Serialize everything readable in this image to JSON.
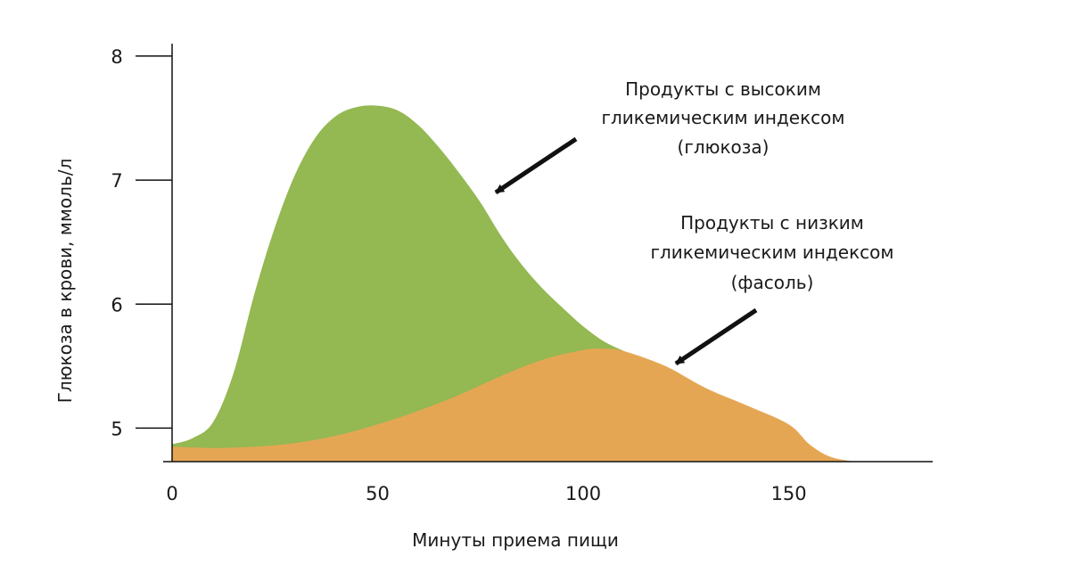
{
  "chart_data": {
    "type": "area",
    "xlabel": "Минуты приема пищи",
    "ylabel": "Глюкоза в крови, ммоль/л",
    "xlim": [
      0,
      185
    ],
    "ylim": [
      4.73,
      8.1
    ],
    "xticks": [
      0,
      50,
      100,
      150
    ],
    "yticks": [
      5,
      6,
      7,
      8
    ],
    "grid": false,
    "series": [
      {
        "name": "high-gi",
        "color": "#94b852",
        "x": [
          0,
          5,
          10,
          15,
          20,
          25,
          30,
          35,
          40,
          45,
          50,
          55,
          60,
          65,
          70,
          75,
          80,
          85,
          90,
          95,
          100,
          105,
          110
        ],
        "values": [
          4.87,
          4.92,
          5.05,
          5.45,
          6.08,
          6.62,
          7.05,
          7.35,
          7.52,
          7.59,
          7.6,
          7.56,
          7.44,
          7.26,
          7.05,
          6.82,
          6.55,
          6.32,
          6.13,
          5.97,
          5.82,
          5.7,
          5.62
        ]
      },
      {
        "name": "low-gi",
        "color": "#e5a654",
        "x": [
          0,
          10,
          20,
          30,
          40,
          50,
          60,
          70,
          80,
          90,
          100,
          105,
          110,
          120,
          130,
          140,
          150,
          155,
          160,
          166
        ],
        "values": [
          4.85,
          4.84,
          4.85,
          4.88,
          4.94,
          5.03,
          5.14,
          5.27,
          5.42,
          5.55,
          5.63,
          5.64,
          5.62,
          5.5,
          5.32,
          5.18,
          5.03,
          4.87,
          4.77,
          4.73
        ]
      }
    ],
    "annotations": [
      {
        "name": "high-gi-note",
        "lines": [
          "Продукты с высоким",
          "гликемическим индексом",
          "(глюкоза)"
        ]
      },
      {
        "name": "low-gi-note",
        "lines": [
          "Продукты с низким",
          "гликемическим индексом",
          "(фасоль)"
        ]
      }
    ]
  }
}
